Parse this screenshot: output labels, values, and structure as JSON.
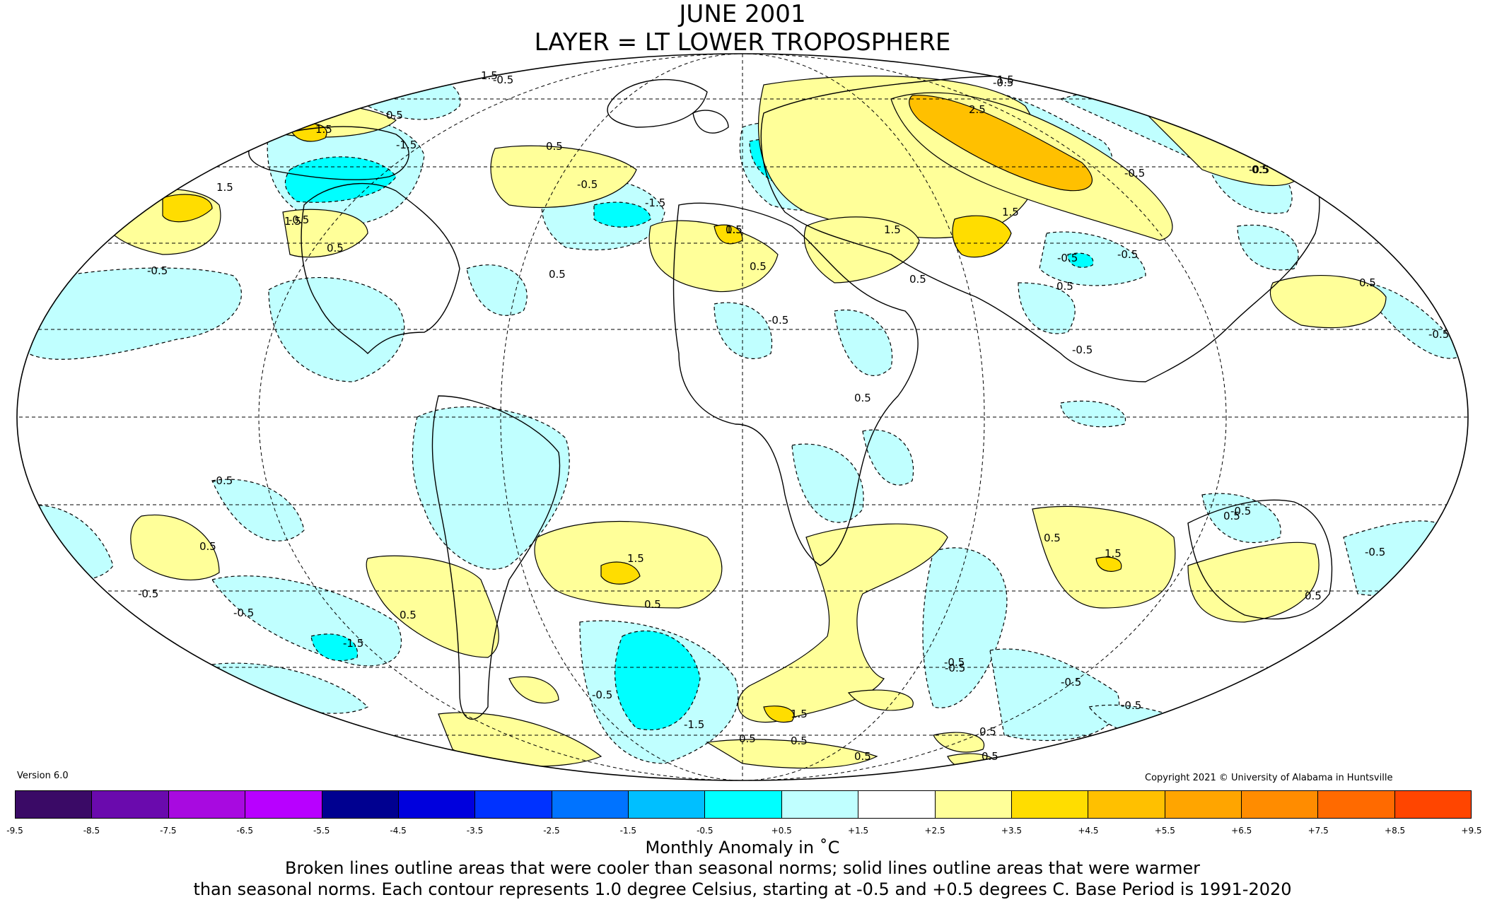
{
  "title": {
    "line1": "JUNE 2001",
    "line2": "LAYER = LT LOWER TROPOSPHERE"
  },
  "version": "Version 6.0",
  "copyright": "Copyright 2021 © University of Alabama in Huntsville",
  "colorbar": {
    "colors": [
      "#3a0a66",
      "#6a0aad",
      "#a80ae0",
      "#b800ff",
      "#000090",
      "#0000dd",
      "#0032ff",
      "#0073ff",
      "#00bfff",
      "#00ffff",
      "#c0ffff",
      "#ffffff",
      "#ffff99",
      "#ffdd00",
      "#ffc000",
      "#ffa500",
      "#ff8c00",
      "#ff6a00",
      "#ff4500",
      "#ff0000",
      "#cc0000"
    ],
    "ticks": [
      "-9.5",
      "-8.5",
      "-7.5",
      "-6.5",
      "-5.5",
      "-4.5",
      "-3.5",
      "-2.5",
      "-1.5",
      "-0.5",
      "+0.5",
      "+1.5",
      "+2.5",
      "+3.5",
      "+4.5",
      "+5.5",
      "+6.5",
      "+7.5",
      "+8.5",
      "+9.5"
    ],
    "label": "Monthly Anomaly in ˚C"
  },
  "notes": {
    "line1": "Broken lines outline areas that were cooler than seasonal norms; solid lines outline areas that were warmer",
    "line2": "than seasonal norms. Each contour represents 1.0 degree Celsius, starting at -0.5 and +0.5 degrees C. Base Period is 1991-2020"
  },
  "map": {
    "projection": "mollweide",
    "colors": {
      "cold_light": "#c0ffff",
      "cold_mid": "#00ffff",
      "warm_light": "#ffff99",
      "warm_mid": "#ffdd00",
      "warm_strong": "#ffc000"
    },
    "contour_labels": [
      "1.5",
      "-0.5",
      "1.5",
      "0.5",
      "1.5",
      "-1.5",
      "1.5",
      "-0.5",
      "0.5",
      "-0.5",
      "0.5",
      "-0.5",
      "0.5",
      "1.5",
      "0.5",
      "1.5",
      "-0.5",
      "-1.5",
      "0.5",
      "-0.5",
      "-0.5",
      "1.5",
      "-0.5",
      "2.5",
      "0.5",
      "-0.5",
      "1.5",
      "0.5",
      "0.5",
      "0.5",
      "-0.5",
      "0.5",
      "0.5",
      "-0.5",
      "-0.5",
      "0.5",
      "-0.5",
      "-1.5",
      "0.5",
      "1.5",
      "0.5",
      "1.5",
      "-0.5",
      "0.5",
      "-0.5",
      "-0.5",
      "-0.5",
      "0.5",
      "1.5",
      "0.5",
      "0.5",
      "0.5",
      "-0.5",
      "-1.5",
      "-0.5",
      "0.5",
      "0.5",
      "-0.5",
      "-0.5",
      "-0.5"
    ]
  }
}
